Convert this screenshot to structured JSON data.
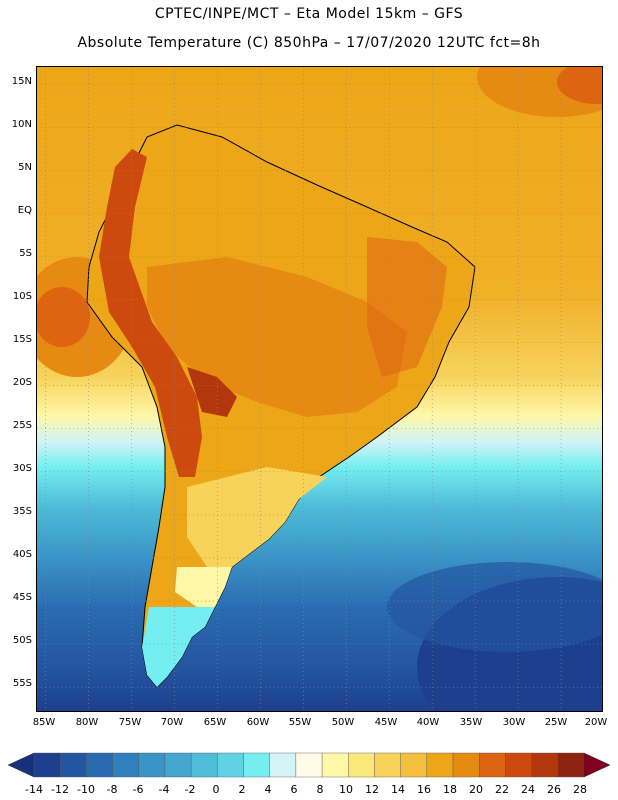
{
  "header": {
    "title": "CPTEC/INPE/MCT –  Eta Model 15km – GFS",
    "subtitle": "Absolute Temperature (C) 850hPa – 17/07/2020 12UTC fct=8h"
  },
  "map": {
    "region": "South America",
    "variable": "Absolute Temperature (C) 850hPa",
    "lat_range": [
      -58,
      17
    ],
    "lon_range": [
      -86,
      -20
    ],
    "lat_ticks": [
      "15N",
      "10N",
      "5N",
      "EQ",
      "5S",
      "10S",
      "15S",
      "20S",
      "25S",
      "30S",
      "35S",
      "40S",
      "45S",
      "50S",
      "55S"
    ],
    "lat_values": [
      15,
      10,
      5,
      0,
      -5,
      -10,
      -15,
      -20,
      -25,
      -30,
      -35,
      -40,
      -45,
      -50,
      -55
    ],
    "lon_ticks": [
      "85W",
      "80W",
      "75W",
      "70W",
      "65W",
      "60W",
      "55W",
      "50W",
      "45W",
      "40W",
      "35W",
      "30W",
      "25W",
      "20W"
    ],
    "lon_values": [
      -85,
      -80,
      -75,
      -70,
      -65,
      -60,
      -55,
      -50,
      -45,
      -40,
      -35,
      -30,
      -25,
      -20
    ],
    "gridlines": "dotted"
  },
  "colorbar": {
    "labels": [
      "-14",
      "-12",
      "-10",
      "-8",
      "-6",
      "-4",
      "-2",
      "0",
      "2",
      "4",
      "6",
      "8",
      "10",
      "12",
      "14",
      "16",
      "18",
      "20",
      "22",
      "24",
      "26",
      "28"
    ],
    "colors": [
      "#1d3f8e",
      "#2356a0",
      "#2a6bb0",
      "#3080bd",
      "#3a94c6",
      "#44a7ce",
      "#4fbcd8",
      "#5fd3e2",
      "#74eef0",
      "#d2f4f6",
      "#fffbe8",
      "#fff7a8",
      "#fbe87c",
      "#f7d35c",
      "#f2bf3f",
      "#eda618",
      "#e68a12",
      "#dd6410",
      "#cc4a0d",
      "#b3370c",
      "#8e2410"
    ],
    "under_color": "#16307a",
    "over_color": "#800020"
  }
}
